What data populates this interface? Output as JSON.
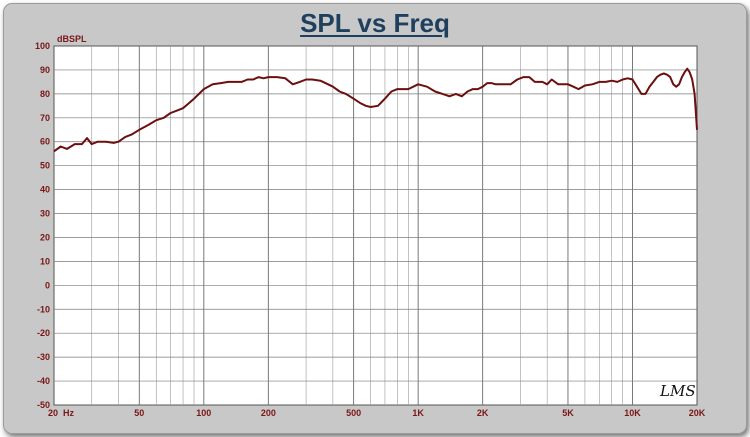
{
  "chart_data": {
    "type": "line",
    "title": "SPL vs Freq",
    "ylabel": "dBSPL",
    "xlabel": "",
    "x_scale": "log",
    "xlim": [
      20,
      20000
    ],
    "ylim": [
      -50,
      100
    ],
    "y_ticks": [
      100,
      90,
      80,
      70,
      60,
      50,
      40,
      30,
      20,
      10,
      0,
      -10,
      -20,
      -30,
      -40,
      -50
    ],
    "x_ticks": [
      {
        "value": 20,
        "label": "20  Hz"
      },
      {
        "value": 50,
        "label": "50"
      },
      {
        "value": 100,
        "label": "100"
      },
      {
        "value": 200,
        "label": "200"
      },
      {
        "value": 500,
        "label": "500"
      },
      {
        "value": 1000,
        "label": "1K"
      },
      {
        "value": 2000,
        "label": "2K"
      },
      {
        "value": 5000,
        "label": "5K"
      },
      {
        "value": 10000,
        "label": "10K"
      },
      {
        "value": 20000,
        "label": "20K"
      }
    ],
    "grid": true,
    "watermark": "LMS",
    "line_color": "#6b0f0f",
    "series": [
      {
        "points": [
          [
            20,
            56
          ],
          [
            21.5,
            58
          ],
          [
            23,
            57
          ],
          [
            25,
            59
          ],
          [
            27,
            59
          ],
          [
            28.5,
            61.5
          ],
          [
            30,
            59
          ],
          [
            32,
            60
          ],
          [
            35,
            60
          ],
          [
            38,
            59.5
          ],
          [
            40,
            60
          ],
          [
            43,
            62
          ],
          [
            46,
            63
          ],
          [
            50,
            65
          ],
          [
            55,
            67
          ],
          [
            60,
            69
          ],
          [
            65,
            70
          ],
          [
            70,
            72
          ],
          [
            75,
            73
          ],
          [
            80,
            74
          ],
          [
            85,
            76
          ],
          [
            90,
            78
          ],
          [
            95,
            80
          ],
          [
            100,
            82
          ],
          [
            110,
            84
          ],
          [
            120,
            84.5
          ],
          [
            130,
            85
          ],
          [
            140,
            85
          ],
          [
            150,
            85
          ],
          [
            160,
            86
          ],
          [
            170,
            86
          ],
          [
            180,
            87
          ],
          [
            190,
            86.5
          ],
          [
            200,
            87
          ],
          [
            220,
            87
          ],
          [
            240,
            86.5
          ],
          [
            260,
            84
          ],
          [
            280,
            85
          ],
          [
            300,
            86
          ],
          [
            320,
            86
          ],
          [
            350,
            85.5
          ],
          [
            380,
            84
          ],
          [
            400,
            83
          ],
          [
            430,
            81
          ],
          [
            460,
            80
          ],
          [
            500,
            78
          ],
          [
            540,
            76
          ],
          [
            570,
            75
          ],
          [
            600,
            74.5
          ],
          [
            650,
            75
          ],
          [
            700,
            78
          ],
          [
            750,
            81
          ],
          [
            800,
            82
          ],
          [
            900,
            82
          ],
          [
            1000,
            84
          ],
          [
            1100,
            83
          ],
          [
            1200,
            81
          ],
          [
            1300,
            80
          ],
          [
            1400,
            79
          ],
          [
            1500,
            80
          ],
          [
            1600,
            79
          ],
          [
            1700,
            81
          ],
          [
            1800,
            82
          ],
          [
            1900,
            82
          ],
          [
            2000,
            83
          ],
          [
            2100,
            84.5
          ],
          [
            2200,
            84.5
          ],
          [
            2300,
            84
          ],
          [
            2500,
            84
          ],
          [
            2700,
            84
          ],
          [
            2900,
            86
          ],
          [
            3100,
            87
          ],
          [
            3300,
            87
          ],
          [
            3500,
            85
          ],
          [
            3800,
            85
          ],
          [
            4000,
            84
          ],
          [
            4200,
            86
          ],
          [
            4500,
            84
          ],
          [
            4800,
            84
          ],
          [
            5000,
            84
          ],
          [
            5300,
            83
          ],
          [
            5600,
            82
          ],
          [
            6000,
            83.5
          ],
          [
            6500,
            84
          ],
          [
            7000,
            85
          ],
          [
            7500,
            85
          ],
          [
            8000,
            85.5
          ],
          [
            8500,
            85
          ],
          [
            9000,
            86
          ],
          [
            9500,
            86.5
          ],
          [
            10000,
            86
          ],
          [
            10500,
            83
          ],
          [
            11000,
            80
          ],
          [
            11500,
            80
          ],
          [
            12000,
            83
          ],
          [
            12500,
            85
          ],
          [
            13000,
            87
          ],
          [
            13500,
            88
          ],
          [
            14000,
            88.5
          ],
          [
            14500,
            88
          ],
          [
            15000,
            87
          ],
          [
            15500,
            84
          ],
          [
            16000,
            83
          ],
          [
            16500,
            84
          ],
          [
            17000,
            87
          ],
          [
            17500,
            89
          ],
          [
            18000,
            90.5
          ],
          [
            18500,
            89
          ],
          [
            19000,
            86
          ],
          [
            19500,
            80
          ],
          [
            20000,
            65
          ]
        ]
      }
    ]
  }
}
